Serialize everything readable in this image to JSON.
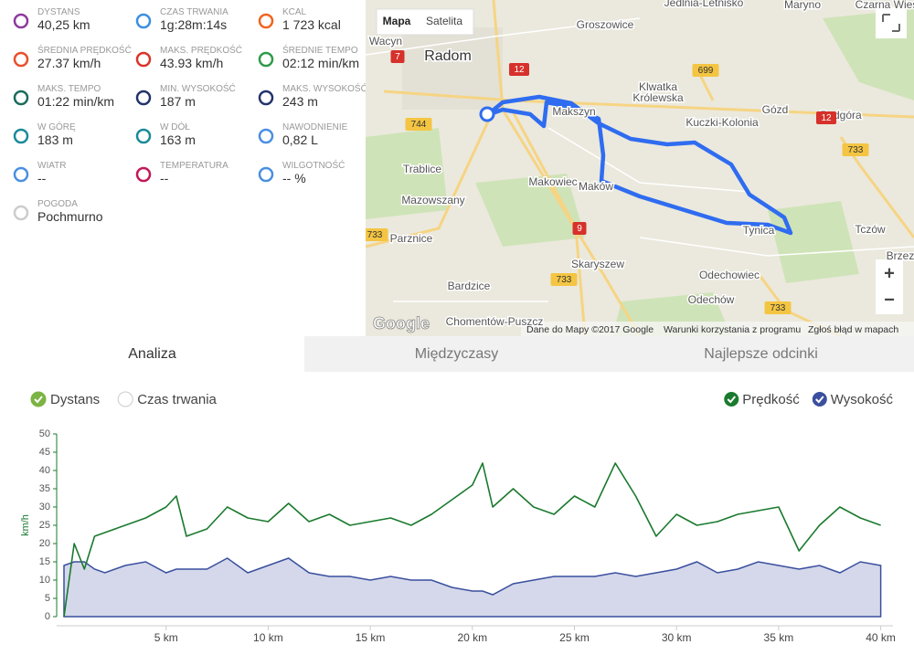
{
  "stats": [
    {
      "label": "DYSTANS",
      "value": "40,25 km"
    },
    {
      "label": "CZAS TRWANIA",
      "value": "1g:28m:14s"
    },
    {
      "label": "KCAL",
      "value": "1 723 kcal"
    },
    {
      "label": "ŚREDNIA PRĘDKOŚĆ",
      "value": "27.37 km/h"
    },
    {
      "label": "MAKS. PRĘDKOŚĆ",
      "value": "43.93 km/h"
    },
    {
      "label": "ŚREDNIE TEMPO",
      "value": "02:12 min/km"
    },
    {
      "label": "MAKS. TEMPO",
      "value": "01:22 min/km"
    },
    {
      "label": "MIN. WYSOKOŚĆ",
      "value": "187 m"
    },
    {
      "label": "MAKS. WYSOKOŚĆ",
      "value": "243 m"
    },
    {
      "label": "W GÓRĘ",
      "value": "183 m"
    },
    {
      "label": "W DÓŁ",
      "value": "163 m"
    },
    {
      "label": "NAWODNIENIE",
      "value": "0,82 L"
    },
    {
      "label": "WIATR",
      "value": "--"
    },
    {
      "label": "TEMPERATURA",
      "value": "--"
    },
    {
      "label": "WILGOTNOŚĆ",
      "value": "-- %"
    },
    {
      "label": "POGODA",
      "value": "Pochmurno"
    }
  ],
  "map": {
    "buttons": [
      "Mapa",
      "Satelita"
    ],
    "places": [
      "Wacyn",
      "Radom",
      "Groszowice",
      "Klwatka",
      "Królewska",
      "Kuczki-Kolonia",
      "Gózd",
      "Podgóra",
      "Makowiec",
      "Trablice",
      "Mazowszany",
      "Parznice",
      "Skaryszew",
      "Bardzice",
      "Odechowiec",
      "Odechów",
      "Tczów",
      "Maryno",
      "Jedlnia-Letnisko",
      "Chomentów-Puszcz",
      "Makszyn",
      "Maków",
      "Tynica",
      "Czarna Wieś",
      "Brzez"
    ],
    "roads": [
      "7",
      "12",
      "744",
      "699",
      "12",
      "733",
      "9",
      "733",
      "733",
      "733"
    ],
    "zoom": [
      "+",
      "−"
    ],
    "logo": "Google",
    "footer": [
      "Dane do Mapy ©2017 Google",
      "Warunki korzystania z programu",
      "Zgłoś błąd w mapach"
    ]
  },
  "tabs": [
    "Analiza",
    "Międzyczasy",
    "Najlepsze odcinki"
  ],
  "chart_data": {
    "type": "line",
    "x_axis_options": [
      "Dystans",
      "Czas trwania"
    ],
    "x_axis_selected": 0,
    "ylabel": "km/h",
    "x": [
      0,
      0.5,
      1,
      1.5,
      2,
      3,
      4,
      5,
      5.5,
      6,
      7,
      8,
      9,
      10,
      11,
      12,
      13,
      14,
      15,
      16,
      17,
      18,
      19,
      20,
      20.5,
      21,
      22,
      23,
      24,
      25,
      26,
      27,
      28,
      29,
      30,
      31,
      32,
      33,
      34,
      35,
      36,
      37,
      38,
      39,
      40
    ],
    "series": [
      {
        "name": "Prędkość",
        "color": "#1a7a2e",
        "area": false,
        "values": [
          0,
          20,
          13,
          22,
          23,
          25,
          27,
          30,
          33,
          22,
          24,
          30,
          27,
          26,
          31,
          26,
          28,
          25,
          26,
          27,
          25,
          28,
          32,
          36,
          42,
          30,
          35,
          30,
          28,
          33,
          30,
          42,
          33,
          22,
          28,
          25,
          26,
          28,
          29,
          30,
          18,
          25,
          30,
          27,
          25
        ]
      },
      {
        "name": "Wysokość",
        "color": "#3a4f9e",
        "area": true,
        "values": [
          14,
          15,
          15,
          13,
          12,
          14,
          15,
          12,
          13,
          13,
          13,
          16,
          12,
          14,
          16,
          12,
          11,
          11,
          10,
          11,
          10,
          10,
          8,
          7,
          7,
          6,
          9,
          10,
          11,
          11,
          11,
          12,
          11,
          12,
          13,
          15,
          12,
          13,
          15,
          14,
          13,
          14,
          12,
          15,
          14
        ]
      }
    ],
    "xlim": [
      0,
      40.6
    ],
    "ylim": [
      0,
      50
    ],
    "xticks": [
      {
        "value": 5,
        "label": "5 km"
      },
      {
        "value": 10,
        "label": "10 km"
      },
      {
        "value": 15,
        "label": "15 km"
      },
      {
        "value": 20,
        "label": "20 km"
      },
      {
        "value": 25,
        "label": "25 km"
      },
      {
        "value": 30,
        "label": "30 km"
      },
      {
        "value": 35,
        "label": "35 km"
      },
      {
        "value": 40,
        "label": "40 km"
      }
    ],
    "yticks": [
      0,
      5,
      10,
      15,
      20,
      25,
      30,
      35,
      40,
      45,
      50
    ],
    "grid": false
  }
}
